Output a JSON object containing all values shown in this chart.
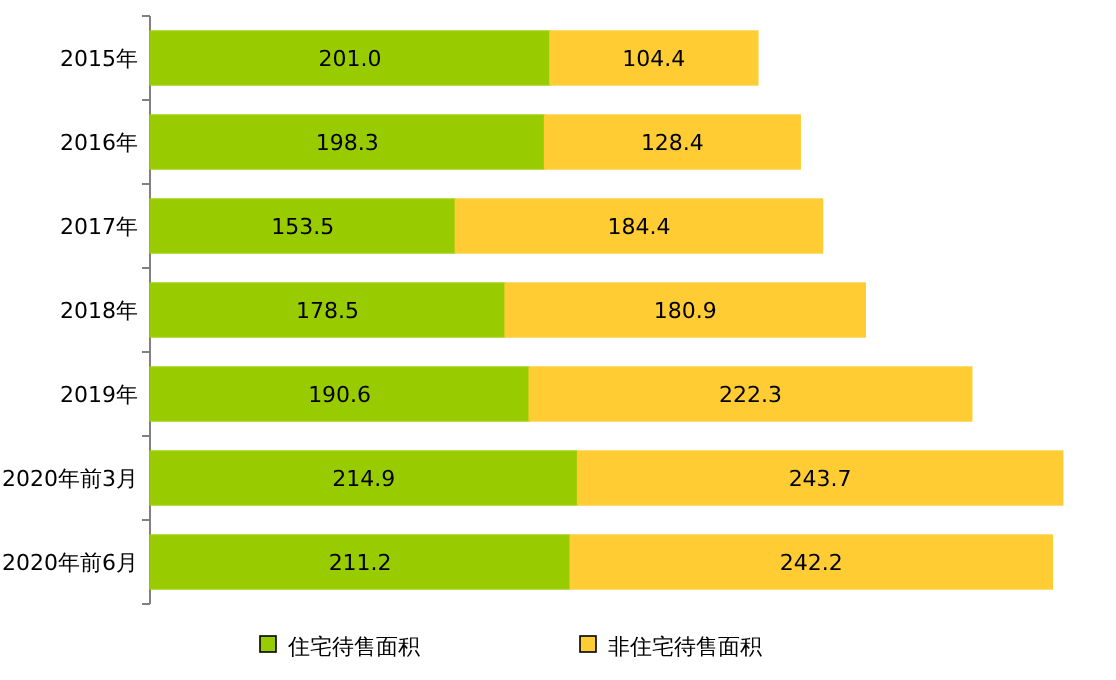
{
  "chart_data": {
    "type": "bar",
    "orientation": "horizontal",
    "stacked": true,
    "legend": "bottom",
    "categories": [
      "2015年",
      "2016年",
      "2017年",
      "2018年",
      "2019年",
      "2020年前3月",
      "2020年前6月"
    ],
    "series": [
      {
        "name": "住宅待售面积",
        "color": "#99cc00",
        "values": [
          201.0,
          198.3,
          153.5,
          178.5,
          190.6,
          214.9,
          211.2
        ],
        "value_labels": [
          "201.0",
          "198.3",
          "153.5",
          "178.5",
          "190.6",
          "214.9",
          "211.2"
        ]
      },
      {
        "name": "非住宅待售面积",
        "color": "#ffcc33",
        "values": [
          104.4,
          128.4,
          184.4,
          180.9,
          222.3,
          243.7,
          242.2
        ],
        "value_labels": [
          "104.4",
          "128.4",
          "184.4",
          "180.9",
          "222.3",
          "243.7",
          "242.2"
        ]
      }
    ]
  }
}
